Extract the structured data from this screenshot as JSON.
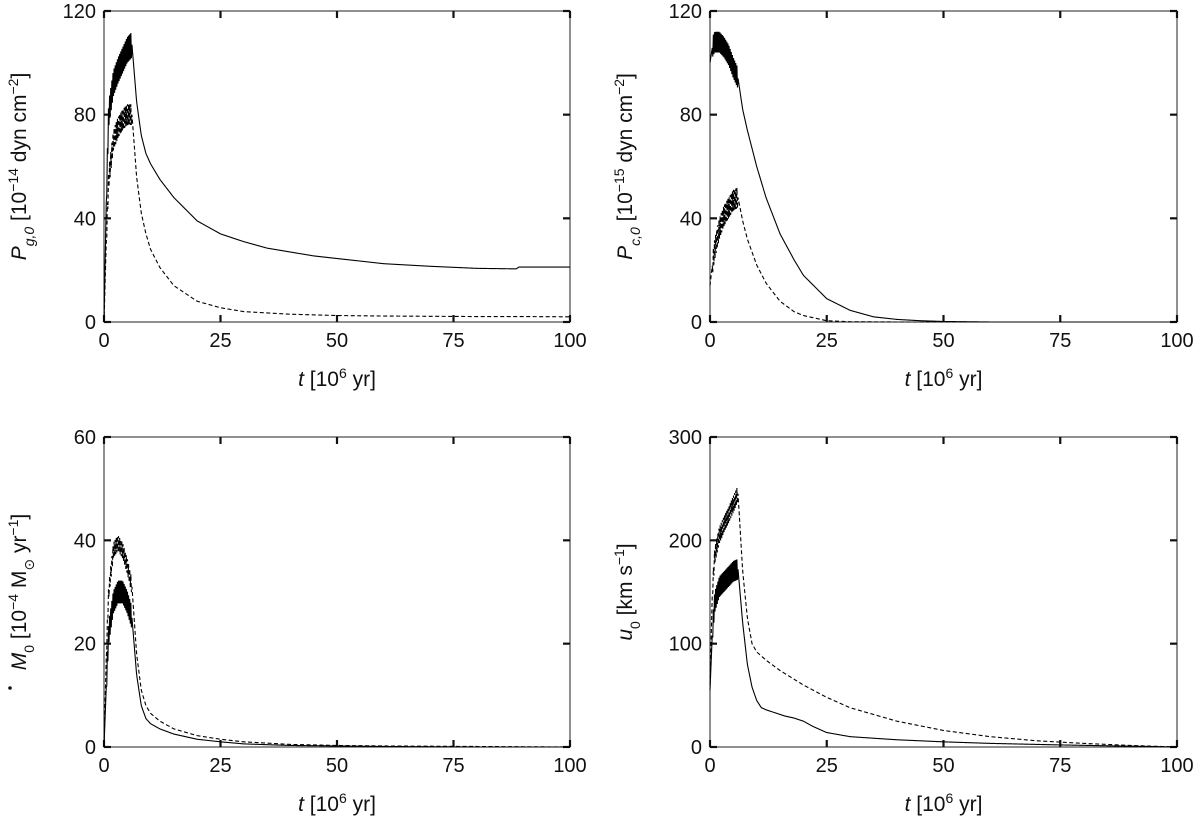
{
  "chart_data": [
    {
      "type": "line",
      "xlabel": {
        "pre": "t",
        "mid": " [10",
        "sup": "6",
        "post": " yr]"
      },
      "ylabel": {
        "sym": "P",
        "sub": "g,0",
        "mid": " [10",
        "sup": "−14",
        "post": " dyn cm",
        "sup2": "−2",
        "end": "]"
      },
      "xlim": [
        0,
        100
      ],
      "ylim": [
        0,
        120
      ],
      "xticks": [
        0,
        25,
        50,
        75,
        100
      ],
      "yticks": [
        0,
        40,
        80,
        120
      ],
      "series": [
        {
          "style": "solid",
          "oscillation": {
            "t_start": 0.5,
            "t_end": 6,
            "amplitude": 5
          },
          "x": [
            0,
            0.5,
            1,
            2,
            3,
            4,
            5,
            6,
            7,
            8,
            9,
            10,
            12,
            15,
            20,
            25,
            30,
            35,
            40,
            45,
            50,
            60,
            70,
            80,
            88.5,
            89,
            100
          ],
          "y": [
            0,
            48,
            80,
            92,
            97,
            101,
            105,
            107,
            85,
            72,
            65,
            61,
            55,
            48,
            39,
            34,
            31,
            28.5,
            27,
            25.5,
            24.5,
            22.5,
            21.5,
            20.7,
            20.5,
            21.2,
            21.2
          ]
        },
        {
          "style": "dashed",
          "oscillation": {
            "t_start": 0.5,
            "t_end": 6,
            "amplitude": 4
          },
          "x": [
            0,
            0.5,
            1,
            2,
            3,
            4,
            5,
            6,
            7,
            8,
            9,
            10,
            12,
            15,
            20,
            25,
            30,
            40,
            50,
            60,
            70,
            80,
            90,
            100
          ],
          "y": [
            0,
            32,
            55,
            70,
            75,
            78,
            80,
            80,
            56,
            42,
            34,
            28,
            21,
            14,
            8,
            5.5,
            4,
            3,
            2.5,
            2.3,
            2.2,
            2.1,
            2.1,
            2
          ]
        }
      ]
    },
    {
      "type": "line",
      "xlabel": {
        "pre": "t",
        "mid": " [10",
        "sup": "6",
        "post": " yr]"
      },
      "ylabel": {
        "sym": "P",
        "sub": "c,0",
        "mid": " [10",
        "sup": "−15",
        "post": " dyn cm",
        "sup2": "−2",
        "end": "]"
      },
      "xlim": [
        0,
        100
      ],
      "ylim": [
        0,
        120
      ],
      "xticks": [
        0,
        25,
        50,
        75,
        100
      ],
      "yticks": [
        0,
        40,
        80,
        120
      ],
      "series": [
        {
          "style": "solid",
          "oscillation": {
            "t_start": 0.5,
            "t_end": 6,
            "amplitude": 4
          },
          "x": [
            0,
            0.5,
            1,
            2,
            3,
            4,
            5,
            6,
            7,
            8,
            10,
            12,
            15,
            18,
            20,
            25,
            30,
            35,
            40,
            45,
            50,
            60,
            70,
            80,
            100
          ],
          "y": [
            100,
            106,
            108,
            108,
            106,
            103,
            98,
            94,
            82,
            74,
            60,
            48,
            34,
            24,
            18,
            9,
            4.5,
            2,
            1,
            0.5,
            0.2,
            0,
            0,
            0,
            0
          ]
        },
        {
          "style": "dashed",
          "oscillation": {
            "t_start": 0.5,
            "t_end": 6,
            "amplitude": 4
          },
          "x": [
            0,
            0.5,
            1,
            2,
            3,
            4,
            5,
            6,
            7,
            8,
            10,
            12,
            15,
            18,
            20,
            25,
            30,
            40,
            50,
            100
          ],
          "y": [
            14,
            22,
            28,
            36,
            41,
            44,
            47,
            48,
            39,
            32,
            22,
            15,
            8,
            4,
            2.5,
            0.5,
            0.1,
            0,
            0,
            0
          ]
        }
      ]
    },
    {
      "type": "line",
      "xlabel": {
        "pre": "t",
        "mid": " [10",
        "sup": "6",
        "post": " yr]"
      },
      "ylabel": {
        "sym": "M",
        "sub": "0",
        "mid": " [10",
        "sup": "−4",
        "post": " M",
        "sub2": "⊙",
        "tail": " yr",
        "sup2": "−1",
        "end": "]"
      },
      "xlim": [
        0,
        100
      ],
      "ylim": [
        0,
        60
      ],
      "xticks": [
        0,
        25,
        50,
        75,
        100
      ],
      "yticks": [
        0,
        20,
        40,
        60
      ],
      "series": [
        {
          "style": "solid",
          "oscillation": {
            "t_start": 0.5,
            "t_end": 6,
            "amplitude": 2.2
          },
          "x": [
            0,
            0.5,
            1,
            2,
            3,
            4,
            5,
            6,
            7,
            8,
            9,
            10,
            12,
            15,
            20,
            25,
            30,
            40,
            50,
            60,
            80,
            100
          ],
          "y": [
            0,
            12,
            22,
            28,
            30,
            30,
            28,
            25,
            14,
            8,
            5.5,
            4.5,
            3.5,
            2.5,
            1.5,
            1,
            0.6,
            0.3,
            0.2,
            0.1,
            0,
            0
          ]
        },
        {
          "style": "dashed",
          "oscillation": {
            "t_start": 0.5,
            "t_end": 6,
            "amplitude": 1.5
          },
          "x": [
            0,
            0.5,
            1,
            2,
            3,
            4,
            5,
            6,
            7,
            8,
            9,
            10,
            12,
            15,
            20,
            25,
            30,
            40,
            50,
            60,
            80,
            100
          ],
          "y": [
            0,
            18,
            30,
            38,
            39.5,
            38,
            35,
            31,
            18,
            11,
            8,
            6.5,
            5,
            3.5,
            2.2,
            1.5,
            1,
            0.5,
            0.3,
            0.2,
            0.1,
            0
          ]
        }
      ]
    },
    {
      "type": "line",
      "xlabel": {
        "pre": "t",
        "mid": " [10",
        "sup": "6",
        "post": " yr]"
      },
      "ylabel": {
        "sym": "u",
        "sub": "0",
        "mid": " [km s",
        "sup": "−1",
        "end": "]"
      },
      "xlim": [
        0,
        100
      ],
      "ylim": [
        0,
        300
      ],
      "xticks": [
        0,
        25,
        50,
        75,
        100
      ],
      "yticks": [
        0,
        100,
        200,
        300
      ],
      "series": [
        {
          "style": "solid",
          "oscillation": {
            "t_start": 0.5,
            "t_end": 6,
            "amplitude": 10
          },
          "x": [
            0,
            0.5,
            1,
            2,
            3,
            4,
            5,
            6,
            7,
            8,
            9,
            10,
            11,
            12,
            14,
            16,
            18,
            20,
            22,
            25,
            30,
            40,
            50,
            60,
            75,
            100
          ],
          "y": [
            55,
            110,
            140,
            155,
            160,
            165,
            170,
            172,
            120,
            80,
            58,
            45,
            38,
            36,
            33,
            30,
            28,
            25,
            20,
            14,
            10,
            7,
            5,
            3.5,
            2,
            0
          ]
        },
        {
          "style": "dashed",
          "oscillation": {
            "t_start": 0.5,
            "t_end": 6,
            "amplitude": 8
          },
          "x": [
            0,
            0.5,
            1,
            2,
            3,
            4,
            5,
            6,
            7,
            8,
            9,
            10,
            12,
            15,
            20,
            25,
            30,
            40,
            50,
            60,
            70,
            80,
            90,
            100
          ],
          "y": [
            60,
            150,
            185,
            205,
            215,
            225,
            235,
            245,
            170,
            125,
            100,
            92,
            84,
            74,
            60,
            48,
            38,
            25,
            16,
            10,
            6,
            3.5,
            1.5,
            0
          ]
        }
      ]
    }
  ]
}
